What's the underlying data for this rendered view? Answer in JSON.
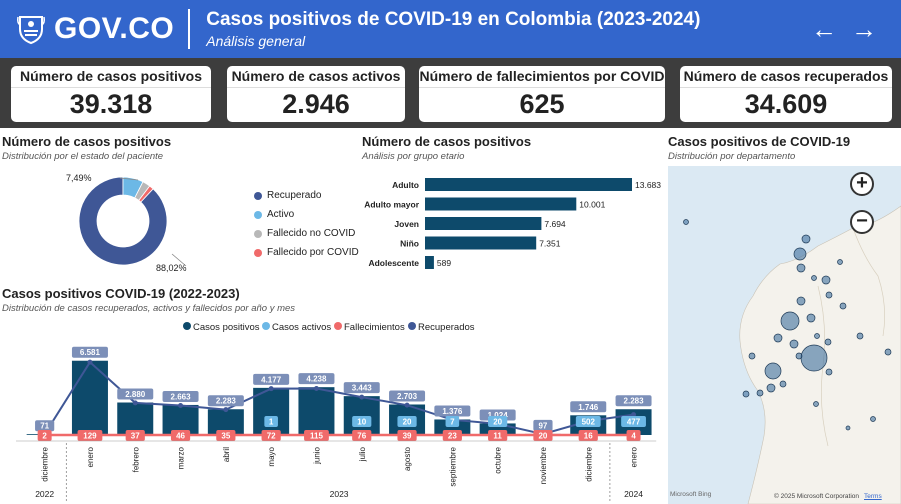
{
  "header": {
    "logo_text": "GOV.CO",
    "title": "Casos positivos de COVID-19 en Colombia (2023-2024)",
    "subtitle": "Análisis general",
    "nav_back": "←",
    "nav_forward": "→"
  },
  "kpis": [
    {
      "label": "Número de casos positivos",
      "value": "39.318"
    },
    {
      "label": "Número de casos activos",
      "value": "2.946"
    },
    {
      "label": "Número de fallecimientos por COVID",
      "value": "625"
    },
    {
      "label": "Número de casos recuperados",
      "value": "34.609"
    }
  ],
  "donut": {
    "title": "Número de casos positivos",
    "subtitle": "Distribución por el estado del paciente",
    "label_small": "7,49%",
    "label_large": "88,02%",
    "legend": [
      {
        "label": "Recuperado",
        "color": "#3f5796"
      },
      {
        "label": "Activo",
        "color": "#6cb8e6"
      },
      {
        "label": "Fallecido no COVID",
        "color": "#b8b8b8"
      },
      {
        "label": "Fallecido por COVID",
        "color": "#f06a6a"
      }
    ]
  },
  "age": {
    "title": "Número de casos positivos",
    "subtitle": "Análisis por grupo etario"
  },
  "monthly": {
    "title": "Casos positivos COVID-19 (2022-2023)",
    "subtitle": "Distribución de casos recuperados, activos y fallecidos por año y mes",
    "year_labels": [
      "2022",
      "2023",
      "2024"
    ]
  },
  "map": {
    "title": "Casos positivos de COVID-19",
    "subtitle": "Distribución por departamento",
    "zoom_in": "+",
    "zoom_out": "−",
    "brand": "Microsoft Bing",
    "copyright": "© 2025 Microsoft Corporation",
    "terms": "Terms"
  },
  "chart_data": [
    {
      "type": "pie",
      "title": "Número de casos positivos",
      "categories": [
        "Recuperado",
        "Activo",
        "Fallecido no COVID",
        "Fallecido por COVID"
      ],
      "values": [
        88.02,
        7.49,
        2.9,
        1.59
      ],
      "colors": [
        "#3f5796",
        "#6cb8e6",
        "#b8b8b8",
        "#f06a6a"
      ],
      "legend": "right"
    },
    {
      "type": "bar",
      "orientation": "horizontal",
      "title": "Número de casos positivos",
      "categories": [
        "Adulto",
        "Adulto mayor",
        "Joven",
        "Niño",
        "Adolescente"
      ],
      "values": [
        13683,
        10001,
        7694,
        7351,
        589
      ],
      "value_labels": [
        "13.683",
        "10.001",
        "7.694",
        "7.351",
        "589"
      ],
      "xlim": [
        0,
        13683
      ],
      "color": "#0d4a6b"
    },
    {
      "type": "bar",
      "title": "Casos positivos COVID-19 (2022-2023)",
      "categories": [
        "diciembre",
        "enero",
        "febrero",
        "marzo",
        "abril",
        "mayo",
        "junio",
        "julio",
        "agosto",
        "septiembre",
        "octubre",
        "noviembre",
        "diciembre",
        "enero"
      ],
      "years": [
        "2022",
        "2023",
        "2023",
        "2023",
        "2023",
        "2023",
        "2023",
        "2023",
        "2023",
        "2023",
        "2023",
        "2023",
        "2023",
        "2024"
      ],
      "series": [
        {
          "name": "Casos positivos",
          "color": "#0d4a6b",
          "values": [
            71,
            6581,
            2880,
            2663,
            2283,
            4177,
            4238,
            3443,
            2703,
            1376,
            1024,
            97,
            1746,
            2283
          ],
          "labels": [
            "71",
            "6.581",
            "2.880",
            "2.663",
            "2.283",
            "4.177",
            "4.238",
            "3.443",
            "2.703",
            "1.376",
            "1.024",
            "97",
            "1.746",
            "2.283"
          ]
        },
        {
          "name": "Casos activos",
          "color": "#6cb8e6",
          "values": [
            0,
            0,
            0,
            0,
            0,
            1,
            0,
            10,
            20,
            7,
            20,
            97,
            502,
            477
          ],
          "labels": [
            "",
            "",
            "",
            "",
            "",
            "1",
            "",
            "10",
            "20",
            "7",
            "20",
            "",
            "502",
            "477"
          ]
        },
        {
          "name": "Fallecimientos",
          "color": "#f06a6a",
          "values": [
            2,
            129,
            37,
            46,
            35,
            72,
            115,
            76,
            39,
            23,
            11,
            20,
            16,
            4
          ],
          "labels": [
            "2",
            "129",
            "37",
            "46",
            "35",
            "72",
            "115",
            "76",
            "39",
            "23",
            "11",
            "20",
            "16",
            "4"
          ]
        },
        {
          "name": "Recuperados",
          "color": "#3f5796",
          "values": [
            71,
            6452,
            2843,
            2617,
            2248,
            4104,
            4123,
            3357,
            2644,
            1346,
            993,
            77,
            1228,
            1802
          ]
        }
      ],
      "ylim": [
        0,
        7000
      ],
      "legend": "top"
    }
  ]
}
